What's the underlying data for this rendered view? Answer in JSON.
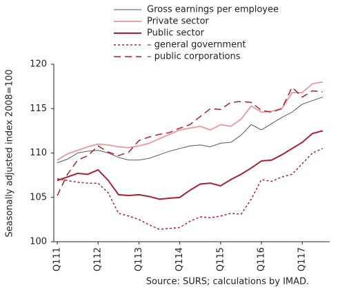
{
  "chart_data": {
    "type": "line",
    "y_label": "Seasonally adjusted index 2008=100",
    "source": "Source: SURS; calculations by IMAD.",
    "categories": [
      "Q111",
      null,
      null,
      null,
      "Q112",
      null,
      null,
      null,
      "Q113",
      null,
      null,
      null,
      "Q114",
      null,
      null,
      null,
      "Q115",
      null,
      null,
      null,
      "Q116",
      null,
      null,
      null,
      "Q117",
      null,
      null
    ],
    "ylim": [
      100,
      120
    ],
    "yticks": [
      100,
      105,
      110,
      115,
      120
    ],
    "series": [
      {
        "name": "Gross earnings per employee",
        "color": "#555555",
        "dash": "solid",
        "width": 1,
        "values": [
          108.9,
          109.3,
          110.0,
          110.2,
          110.3,
          110.0,
          109.5,
          109.2,
          109.2,
          109.4,
          109.8,
          110.2,
          110.5,
          110.8,
          110.9,
          110.7,
          111.1,
          111.2,
          112.0,
          113.2,
          112.6,
          113.3,
          114.0,
          114.6,
          115.5,
          115.9,
          116.3
        ]
      },
      {
        "name": "Private sector",
        "color": "#e8a0a0",
        "dash": "solid",
        "width": 2,
        "values": [
          109.2,
          109.9,
          110.3,
          110.7,
          111.0,
          110.9,
          110.7,
          110.6,
          110.8,
          111.1,
          111.6,
          112.1,
          112.6,
          112.8,
          113.0,
          112.6,
          113.2,
          113.0,
          113.8,
          115.3,
          114.6,
          114.7,
          115.0,
          116.8,
          116.8,
          117.8,
          118.0
        ]
      },
      {
        "name": "Public sector",
        "color": "#b01c2e",
        "dash": "solid",
        "width": 2,
        "values": [
          106.9,
          107.3,
          107.7,
          107.6,
          108.1,
          106.9,
          105.3,
          105.2,
          105.3,
          105.1,
          104.8,
          104.9,
          105.0,
          105.8,
          106.5,
          106.6,
          106.3,
          107.0,
          107.6,
          108.3,
          109.1,
          109.2,
          109.8,
          110.5,
          111.2,
          112.2,
          112.5
        ]
      },
      {
        "name": "– general government",
        "color": "#b01c2e",
        "dash": "dotted",
        "width": 1.5,
        "values": [
          107.1,
          106.9,
          106.7,
          106.6,
          106.6,
          105.5,
          103.2,
          102.9,
          102.5,
          101.9,
          101.4,
          101.5,
          101.6,
          102.3,
          102.8,
          102.7,
          102.9,
          103.2,
          103.1,
          104.8,
          107.0,
          106.8,
          107.3,
          107.6,
          108.8,
          110.0,
          110.5
        ]
      },
      {
        "name": "– public corporations",
        "color": "#b01c2e",
        "dash": "dashed",
        "width": 1.5,
        "values": [
          105.2,
          107.6,
          109.2,
          109.7,
          110.8,
          110.1,
          109.7,
          110.1,
          111.4,
          111.8,
          112.1,
          112.3,
          112.8,
          113.2,
          114.1,
          115.0,
          114.9,
          115.7,
          115.8,
          115.7,
          114.8,
          114.6,
          115.0,
          117.4,
          116.3,
          117.0,
          116.9
        ]
      }
    ]
  }
}
